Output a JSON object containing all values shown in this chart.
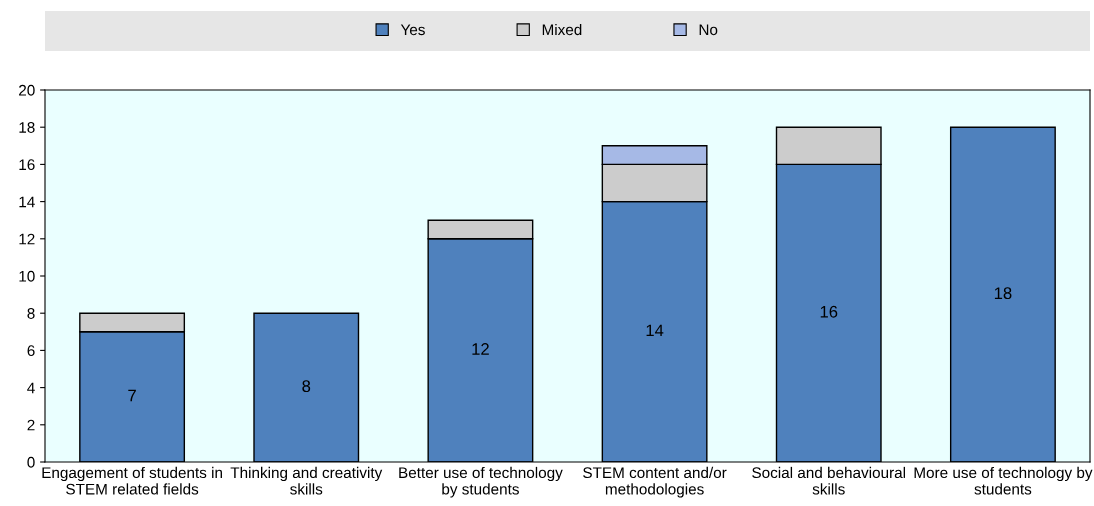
{
  "chart_data": {
    "type": "bar",
    "stacked": true,
    "categories": [
      "Engagement of students in\nSTEM related fields",
      "Thinking and creativity\nskills",
      "Better use of technology\nby students",
      "STEM content and/or\nmethodologies",
      "Social and behavioural\nskills",
      "More use of technology by\nstudents"
    ],
    "series": [
      {
        "name": "Yes",
        "color": "#4f81bd",
        "values": [
          7,
          8,
          12,
          14,
          16,
          18
        ],
        "value_labels": [
          "7",
          "8",
          "12",
          "14",
          "16",
          "18"
        ]
      },
      {
        "name": "Mixed",
        "color": "#cccccc",
        "values": [
          1,
          null,
          1,
          2,
          2,
          null
        ]
      },
      {
        "name": "No",
        "color": "#a6b9e6",
        "values": [
          null,
          null,
          null,
          1,
          null,
          null
        ]
      }
    ],
    "ylim": [
      0,
      20
    ],
    "yticks": [
      0,
      2,
      4,
      6,
      8,
      10,
      12,
      14,
      16,
      18,
      20
    ],
    "grid": false,
    "legend": "top"
  }
}
